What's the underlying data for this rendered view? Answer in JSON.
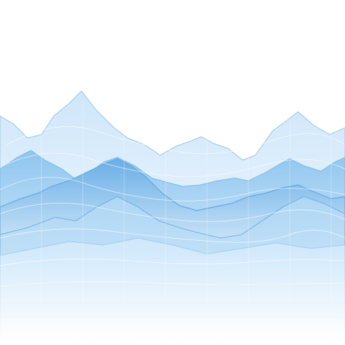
{
  "scene": {
    "subject": "layered-blue-mountain-line-art",
    "colors": {
      "background": "#ffffff",
      "far": "#d8ecfb",
      "mid": "#a9d3f3",
      "near": "#6fb2e6",
      "accent": "#4e9fe0",
      "line": "#ffffff"
    }
  }
}
